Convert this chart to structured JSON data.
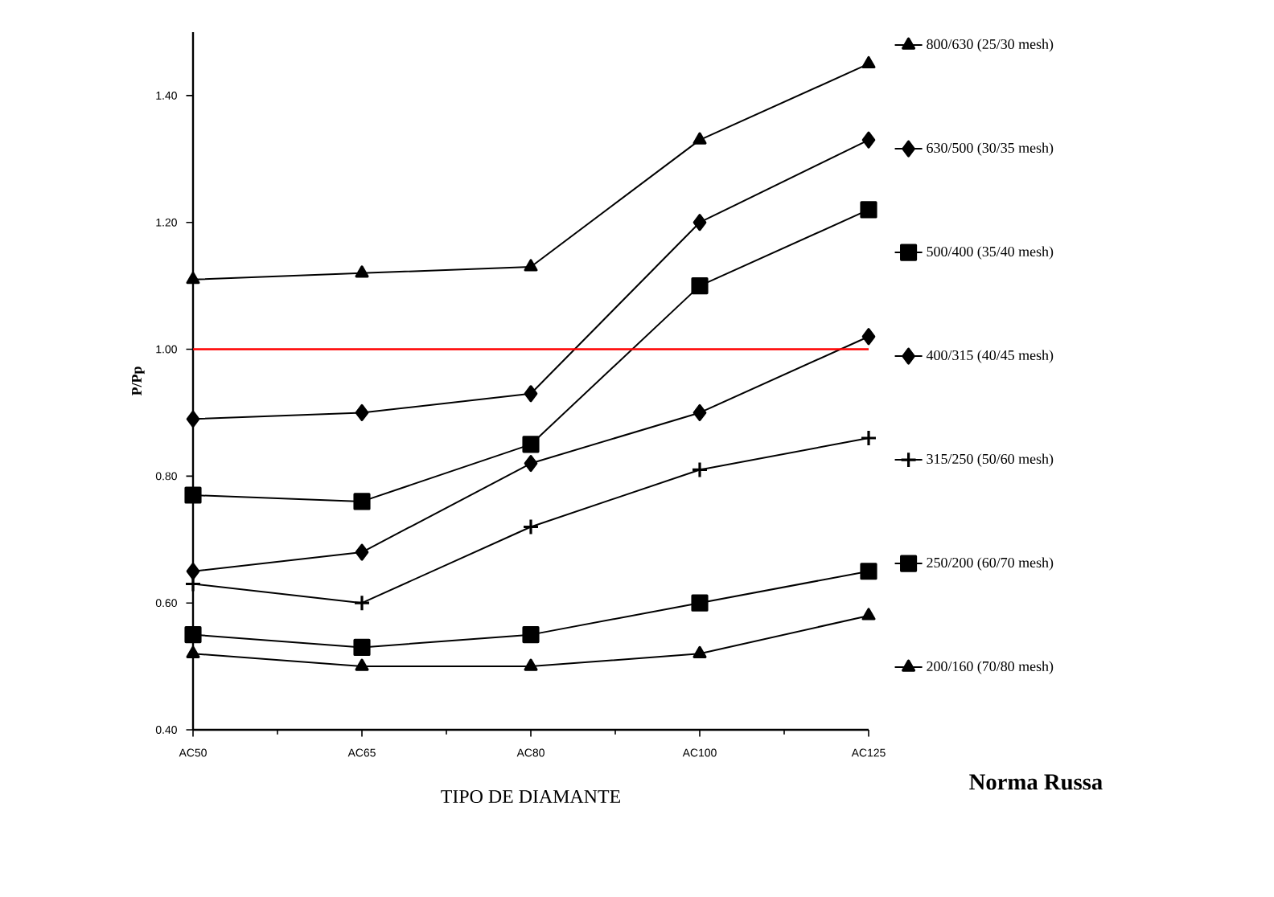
{
  "chart_data": {
    "type": "line",
    "xlabel": "TIPO DE DIAMANTE",
    "ylabel": "P/Pp",
    "categories": [
      "AC50",
      "AC65",
      "AC80",
      "AC100",
      "AC125"
    ],
    "series": [
      {
        "name": "800/630 (25/30 mesh)",
        "color": "#000000",
        "marker": "triangle",
        "values": [
          1.11,
          1.12,
          1.13,
          1.33,
          1.45
        ]
      },
      {
        "name": "630/500 (30/35 mesh)",
        "color": "#000000",
        "marker": "diamond",
        "values": [
          0.89,
          0.9,
          0.93,
          1.2,
          1.33
        ]
      },
      {
        "name": "500/400 (35/40 mesh)",
        "color": "#000000",
        "marker": "square",
        "values": [
          0.77,
          0.76,
          0.85,
          1.1,
          1.22
        ]
      },
      {
        "name": "400/315 (40/45 mesh)",
        "color": "#000000",
        "marker": "diamond",
        "values": [
          0.65,
          0.68,
          0.82,
          0.9,
          1.02
        ]
      },
      {
        "name": "315/250 (50/60 mesh)",
        "color": "#000000",
        "marker": "cross",
        "values": [
          0.63,
          0.6,
          0.72,
          0.81,
          0.86
        ]
      },
      {
        "name": "250/200 (60/70 mesh)",
        "color": "#000000",
        "marker": "square",
        "values": [
          0.55,
          0.53,
          0.55,
          0.6,
          0.65
        ]
      },
      {
        "name": "200/160 (70/80 mesh)",
        "color": "#000000",
        "marker": "triangle",
        "values": [
          0.52,
          0.5,
          0.5,
          0.52,
          0.58
        ]
      }
    ],
    "ylim": [
      0.4,
      1.5
    ],
    "yticks": [
      {
        "value": 0.4,
        "label": "0.40"
      },
      {
        "value": 0.6,
        "label": "0.60"
      },
      {
        "value": 0.8,
        "label": "0.80"
      },
      {
        "value": 1.0,
        "label": "1.00"
      },
      {
        "value": 1.2,
        "label": "1.20"
      },
      {
        "value": 1.4,
        "label": "1.40"
      }
    ],
    "ref_lines": [
      {
        "axis": "y",
        "value": 1.0,
        "color": "#ff0000"
      }
    ],
    "annotations": [
      "Norma Russa"
    ],
    "legend": "right",
    "grid": false
  }
}
